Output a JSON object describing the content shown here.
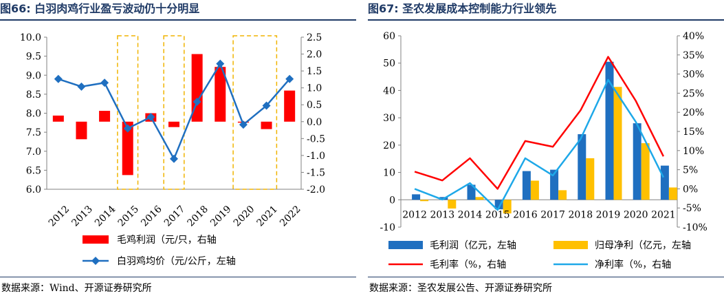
{
  "chart_data": [
    {
      "figure_label": "图66:",
      "title": "白羽肉鸡行业盈亏波动仍十分明显",
      "type": "bar",
      "categories": [
        "2012",
        "2013",
        "2014",
        "2015",
        "2016",
        "2017",
        "2018",
        "2019",
        "2020",
        "2021",
        "2022"
      ],
      "x_label_rotation": "-45deg",
      "left_axis": {
        "min": 6.0,
        "max": 10.0,
        "step": 0.5,
        "tick_labels": [
          "6.0",
          "6.5",
          "7.0",
          "7.5",
          "8.0",
          "8.5",
          "9.0",
          "9.5",
          "10.0"
        ]
      },
      "right_axis": {
        "min": -2.0,
        "max": 2.5,
        "step": 0.5,
        "tick_labels": [
          "-2.0",
          "-1.5",
          "-1.0",
          "-0.5",
          "0.0",
          "0.5",
          "1.0",
          "1.5",
          "2.0",
          "2.5"
        ]
      },
      "grid": false,
      "series": [
        {
          "name": "毛鸡利润（元/只，右轴",
          "type": "bar",
          "axis": "right",
          "color": "#ff0000",
          "values": [
            0.18,
            -0.52,
            0.32,
            -1.58,
            0.25,
            -0.16,
            2.0,
            1.62,
            -0.03,
            -0.22,
            0.92
          ]
        },
        {
          "name": "白羽鸡均价（元/公斤，左轴",
          "type": "line",
          "axis": "left",
          "color": "#1f6fc0",
          "marker": "diamond",
          "values": [
            8.9,
            8.7,
            8.8,
            7.6,
            7.9,
            6.8,
            8.3,
            9.3,
            7.7,
            8.2,
            8.9
          ]
        }
      ],
      "highlight_years": [
        "2015",
        "2017",
        "2020",
        "2021"
      ],
      "legend_position": "bottom",
      "source": "数据来源：Wind、开源证券研究所"
    },
    {
      "figure_label": "图67:",
      "title": "圣农发展成本控制能力行业领先",
      "type": "bar",
      "categories": [
        "2012",
        "2013",
        "2014",
        "2015",
        "2016",
        "2017",
        "2018",
        "2019",
        "2020",
        "2021"
      ],
      "left_axis": {
        "min": -10,
        "max": 60,
        "step": 10,
        "tick_labels": [
          "-10",
          "0",
          "10",
          "20",
          "30",
          "40",
          "50",
          "60"
        ]
      },
      "right_axis": {
        "min": -10,
        "max": 40,
        "step": 5,
        "tick_labels": [
          "-10%",
          "-5%",
          "0%",
          "5%",
          "10%",
          "15%",
          "20%",
          "25%",
          "30%",
          "35%",
          "40%"
        ]
      },
      "grid": false,
      "series": [
        {
          "name": "毛利润（亿元，左轴",
          "type": "bar",
          "axis": "left",
          "color": "#1f6fc0",
          "values": [
            2.0,
            1.0,
            5.5,
            -3.5,
            10.5,
            11.0,
            24.0,
            50.5,
            28.0,
            12.5
          ]
        },
        {
          "name": "归母净利（亿元，左轴",
          "type": "bar",
          "axis": "left",
          "color": "#ffc000",
          "values": [
            -0.5,
            -3.2,
            1.0,
            -5.0,
            7.0,
            3.5,
            15.2,
            41.3,
            20.7,
            4.5
          ]
        },
        {
          "name": "毛利率（%，右轴",
          "type": "line",
          "axis": "right",
          "color": "#ff0000",
          "values": [
            4.5,
            2.2,
            8.0,
            0.0,
            12.5,
            11.0,
            20.5,
            34.5,
            23.0,
            8.5
          ]
        },
        {
          "name": "净利率（%，右轴",
          "type": "line",
          "axis": "right",
          "color": "#1ea8e8",
          "values": [
            0.0,
            -2.8,
            1.5,
            -5.5,
            8.0,
            3.5,
            13.0,
            28.5,
            17.5,
            3.0
          ]
        }
      ],
      "legend_position": "bottom",
      "source": "数据来源：圣农发展公告、开源证券研究所"
    }
  ]
}
